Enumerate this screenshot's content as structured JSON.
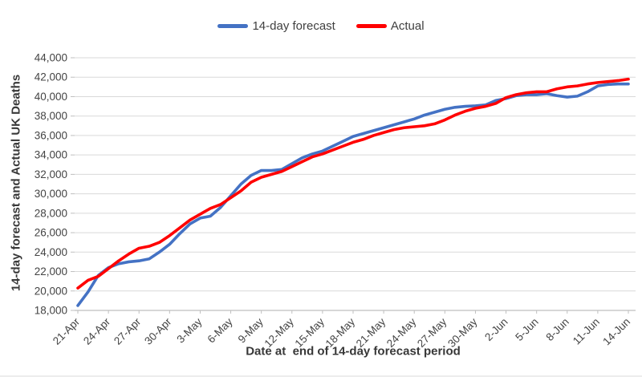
{
  "page": {
    "background": "#FFFFFF"
  },
  "styles": {
    "grid_color": "#D9D9D9",
    "axis_color": "#BFBFBF",
    "label_color": "#444444",
    "title_color": "#383838"
  },
  "chart_data": {
    "type": "line",
    "title": "",
    "x_axis_title": "Date at  end of 14-day forecast period",
    "y_axis_title": "14-day forecast and Actual UK Deaths",
    "legend_position": "top-center",
    "grid": true,
    "ylim": [
      18000,
      44000
    ],
    "y_tick_step": 2000,
    "x": [
      "21-Apr",
      "22-Apr",
      "23-Apr",
      "24-Apr",
      "25-Apr",
      "26-Apr",
      "27-Apr",
      "28-Apr",
      "29-Apr",
      "30-Apr",
      "1-May",
      "2-May",
      "3-May",
      "4-May",
      "5-May",
      "6-May",
      "7-May",
      "8-May",
      "9-May",
      "10-May",
      "11-May",
      "12-May",
      "13-May",
      "14-May",
      "15-May",
      "16-May",
      "17-May",
      "18-May",
      "19-May",
      "20-May",
      "21-May",
      "22-May",
      "23-May",
      "24-May",
      "25-May",
      "26-May",
      "27-May",
      "28-May",
      "29-May",
      "30-May",
      "31-May",
      "1-Jun",
      "2-Jun",
      "3-Jun",
      "4-Jun",
      "5-Jun",
      "6-Jun",
      "7-Jun",
      "8-Jun",
      "9-Jun",
      "10-Jun",
      "11-Jun",
      "12-Jun",
      "13-Jun",
      "14-Jun"
    ],
    "x_tick_indices": [
      0,
      3,
      6,
      9,
      12,
      15,
      18,
      21,
      24,
      27,
      30,
      33,
      36,
      39,
      42,
      45,
      48,
      51,
      54
    ],
    "x_tick_labels": [
      "21-Apr",
      "24-Apr",
      "27-Apr",
      "30-Apr",
      "3-May",
      "6-May",
      "9-May",
      "12-May",
      "15-May",
      "18-May",
      "21-May",
      "24-May",
      "27-May",
      "30-May",
      "2-Jun",
      "5-Jun",
      "8-Jun",
      "11-Jun",
      "14-Jun"
    ],
    "series": [
      {
        "name": "14-day forecast",
        "color": "#4472C4",
        "values": [
          18500,
          19900,
          21600,
          22400,
          22800,
          23000,
          23100,
          23300,
          24000,
          24800,
          25900,
          26900,
          27500,
          27700,
          28600,
          29800,
          31000,
          31900,
          32400,
          32400,
          32500,
          33100,
          33700,
          34100,
          34400,
          34900,
          35400,
          35900,
          36200,
          36500,
          36800,
          37100,
          37400,
          37700,
          38100,
          38400,
          38700,
          38900,
          39000,
          39050,
          39150,
          39600,
          39800,
          40100,
          40200,
          40200,
          40300,
          40100,
          39950,
          40050,
          40500,
          41100,
          41250,
          41300,
          41300
        ]
      },
      {
        "name": "Actual",
        "color": "#FF0000",
        "values": [
          20300,
          21100,
          21500,
          22300,
          23100,
          23800,
          24400,
          24600,
          25000,
          25700,
          26500,
          27300,
          27900,
          28500,
          28900,
          29600,
          30300,
          31200,
          31700,
          32000,
          32300,
          32800,
          33300,
          33800,
          34100,
          34500,
          34900,
          35300,
          35600,
          36000,
          36300,
          36600,
          36800,
          36900,
          37000,
          37200,
          37600,
          38100,
          38500,
          38800,
          39000,
          39300,
          39900,
          40200,
          40400,
          40500,
          40500,
          40800,
          41000,
          41100,
          41300,
          41450,
          41550,
          41650,
          41800
        ]
      }
    ]
  }
}
